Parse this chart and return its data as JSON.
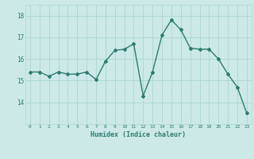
{
  "x": [
    0,
    1,
    2,
    3,
    4,
    5,
    6,
    7,
    8,
    9,
    10,
    11,
    12,
    13,
    14,
    15,
    16,
    17,
    18,
    19,
    20,
    21,
    22,
    23
  ],
  "y": [
    15.4,
    15.4,
    15.2,
    15.4,
    15.3,
    15.3,
    15.4,
    15.05,
    15.9,
    16.4,
    16.45,
    16.7,
    14.3,
    15.4,
    17.1,
    17.8,
    17.35,
    16.5,
    16.45,
    16.45,
    16.0,
    15.3,
    14.7,
    13.5
  ],
  "xlabel": "Humidex (Indice chaleur)",
  "ylim": [
    13.0,
    18.5
  ],
  "xlim": [
    -0.5,
    23.5
  ],
  "yticks": [
    14,
    15,
    16,
    17,
    18
  ],
  "xticks": [
    0,
    1,
    2,
    3,
    4,
    5,
    6,
    7,
    8,
    9,
    10,
    11,
    12,
    13,
    14,
    15,
    16,
    17,
    18,
    19,
    20,
    21,
    22,
    23
  ],
  "line_color": "#2d7d6e",
  "bg_color": "#cce9e7",
  "grid_color": "#afd8d4",
  "tick_label_color": "#2d7d6e",
  "xlabel_color": "#2d7d6e",
  "marker": "D",
  "marker_size": 2.0,
  "line_width": 1.0
}
